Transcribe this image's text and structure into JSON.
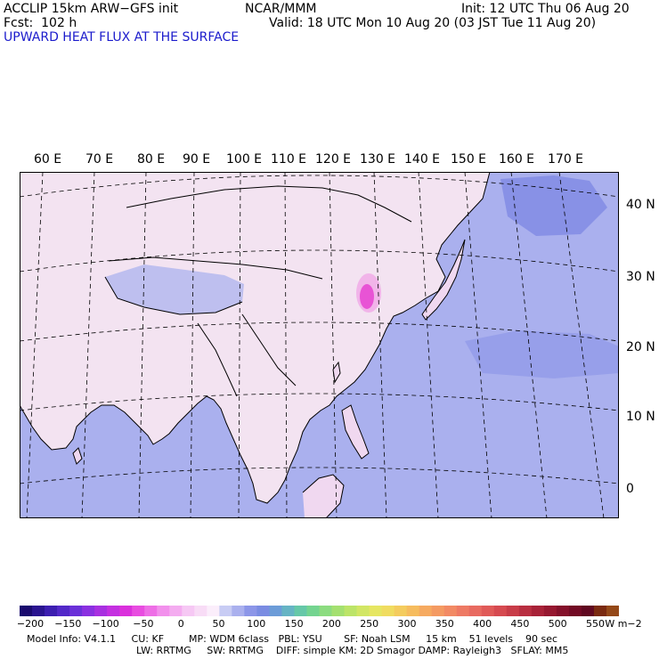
{
  "header": {
    "model": "ACCLIP 15km ARW−GFS init",
    "fcst": "Fcst:  102 h",
    "org": "NCAR/MMM",
    "init": "Init: 12 UTC Thu 06 Aug 20",
    "valid": "Valid: 18 UTC Mon 10 Aug 20 (03 JST Tue 11 Aug 20)",
    "field": "UPWARD HEAT FLUX AT THE SURFACE"
  },
  "map": {
    "lon_labels": [
      "60 E",
      "70 E",
      "80 E",
      "90 E",
      "100 E",
      "110 E",
      "120 E",
      "130 E",
      "140 E",
      "150 E",
      "160 E",
      "170 E"
    ],
    "lat_labels": [
      "40 N",
      "30 N",
      "20 N",
      "10 N",
      "0"
    ],
    "colors": {
      "land": "#f3e3f1",
      "ocean": "#aab0ee",
      "ocean_dark": "#8891e6",
      "hotspot": "#e020c8"
    }
  },
  "colorbar": {
    "ticks": [
      "−200",
      "−150",
      "−100",
      "−50",
      "0",
      "50",
      "100",
      "150",
      "200",
      "250",
      "300",
      "350",
      "400",
      "450",
      "500",
      "550"
    ],
    "unit": "W m−2",
    "colors": [
      "#1a0a6e",
      "#2a1490",
      "#3c1eb0",
      "#5228c8",
      "#6a30d8",
      "#8a30e0",
      "#a830e0",
      "#c430e0",
      "#da30dc",
      "#e84ce0",
      "#ee6ee6",
      "#f290ec",
      "#f4acf0",
      "#f6c8f4",
      "#f8dcf6",
      "#fbeefb",
      "#c8ccf4",
      "#aab0ee",
      "#8c96e8",
      "#7a8ce2",
      "#6c9cd8",
      "#66b4c4",
      "#66c8a8",
      "#74d490",
      "#8cdc80",
      "#a4e070",
      "#bce468",
      "#d2e664",
      "#e6e662",
      "#f0dc60",
      "#f4cc5e",
      "#f6bc5e",
      "#f6aa60",
      "#f49a62",
      "#f28a64",
      "#ee7a64",
      "#e86a60",
      "#e05a58",
      "#d64a50",
      "#c83c48",
      "#b82e40",
      "#a82238",
      "#961830",
      "#84102a",
      "#720a24",
      "#600820",
      "#7a2a10",
      "#944818"
    ]
  },
  "model_info": {
    "line1": "Model Info: V4.1.1     CU: KF        MP: WDM 6class   PBL: YSU       SF: Noah LSM     15 km    51 levels    90 sec",
    "line2": "LW: RRTMG     SW: RRTMG    DIFF: simple KM: 2D Smagor DAMP: Rayleigh3   SFLAY: MM5"
  }
}
